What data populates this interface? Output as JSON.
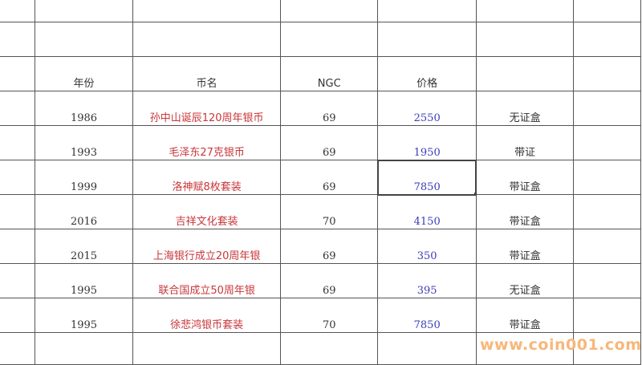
{
  "headers": {
    "year": "年份",
    "name": "币名",
    "ngc": "NGC",
    "price": "价格",
    "box": ""
  },
  "rows": [
    {
      "year": "1986",
      "name": "孙中山诞辰120周年银币",
      "ngc": "69",
      "price": "2550",
      "box": "无证盒"
    },
    {
      "year": "1993",
      "name": "毛泽东27克银币",
      "ngc": "69",
      "price": "1950",
      "box": "带证"
    },
    {
      "year": "1999",
      "name": "洛神赋8枚套装",
      "ngc": "69",
      "price": "7850",
      "box": "带证盒"
    },
    {
      "year": "2016",
      "name": "吉祥文化套装",
      "ngc": "70",
      "price": "4150",
      "box": "带证盒"
    },
    {
      "year": "2015",
      "name": "上海银行成立20周年银",
      "ngc": "69",
      "price": "350",
      "box": "带证盒"
    },
    {
      "year": "1995",
      "name": "联合国成立50周年银",
      "ngc": "69",
      "price": "395",
      "box": "无证盒"
    },
    {
      "year": "1995",
      "name": "徐悲鸿银币套装",
      "ngc": "70",
      "price": "7850",
      "box": "带证盒"
    }
  ],
  "selected_cell": {
    "row": 3,
    "column": "price"
  },
  "watermark": "www.coin001.com",
  "colors": {
    "name_text": "#c8373a",
    "price_text": "#3b3bb8",
    "grid": "#555555"
  }
}
